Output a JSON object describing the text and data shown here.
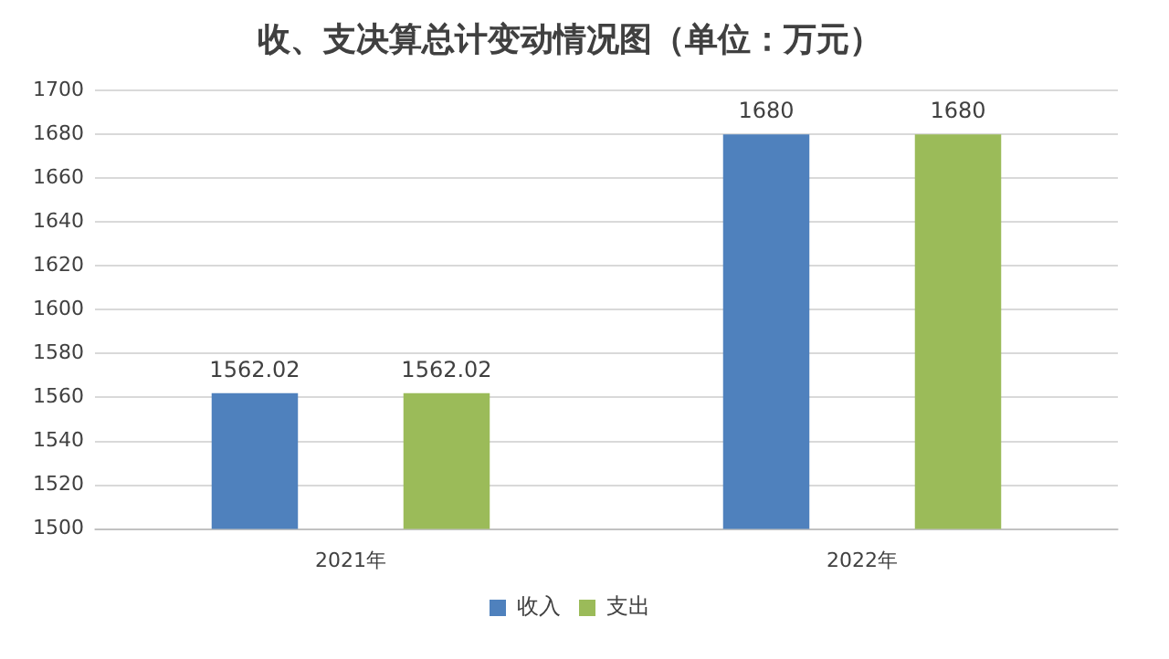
{
  "chart_data": {
    "type": "bar",
    "title": "收、支决算总计变动情况图（单位：万元）",
    "categories": [
      "2021年",
      "2022年"
    ],
    "series": [
      {
        "name": "收入",
        "color": "#4f81bd",
        "values": [
          1562.02,
          1680
        ]
      },
      {
        "name": "支出",
        "color": "#9bbb59",
        "values": [
          1562.02,
          1680
        ]
      }
    ],
    "ylim": [
      1500,
      1700
    ],
    "yticks": [
      1500,
      1520,
      1540,
      1560,
      1580,
      1600,
      1620,
      1640,
      1660,
      1680,
      1700
    ],
    "grid": "y",
    "legend": "bottom",
    "data_labels": true
  }
}
